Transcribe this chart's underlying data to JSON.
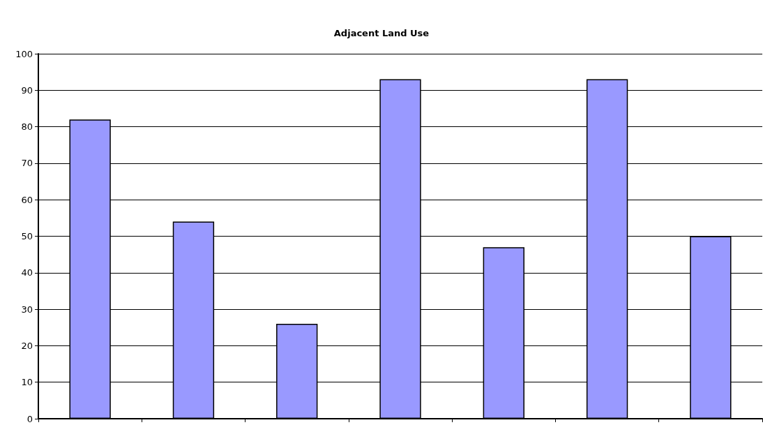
{
  "chart_data": {
    "type": "bar",
    "title": "Adjacent Land Use",
    "categories": [
      null,
      null,
      null,
      null,
      null,
      null,
      null
    ],
    "values": [
      82,
      54,
      26,
      93,
      47,
      93,
      50
    ],
    "color": "#9999ff",
    "ylim": [
      0,
      100
    ],
    "yticks": [
      0,
      10,
      20,
      30,
      40,
      50,
      60,
      70,
      80,
      90,
      100
    ],
    "grid": "y",
    "tick_labels": "y"
  }
}
